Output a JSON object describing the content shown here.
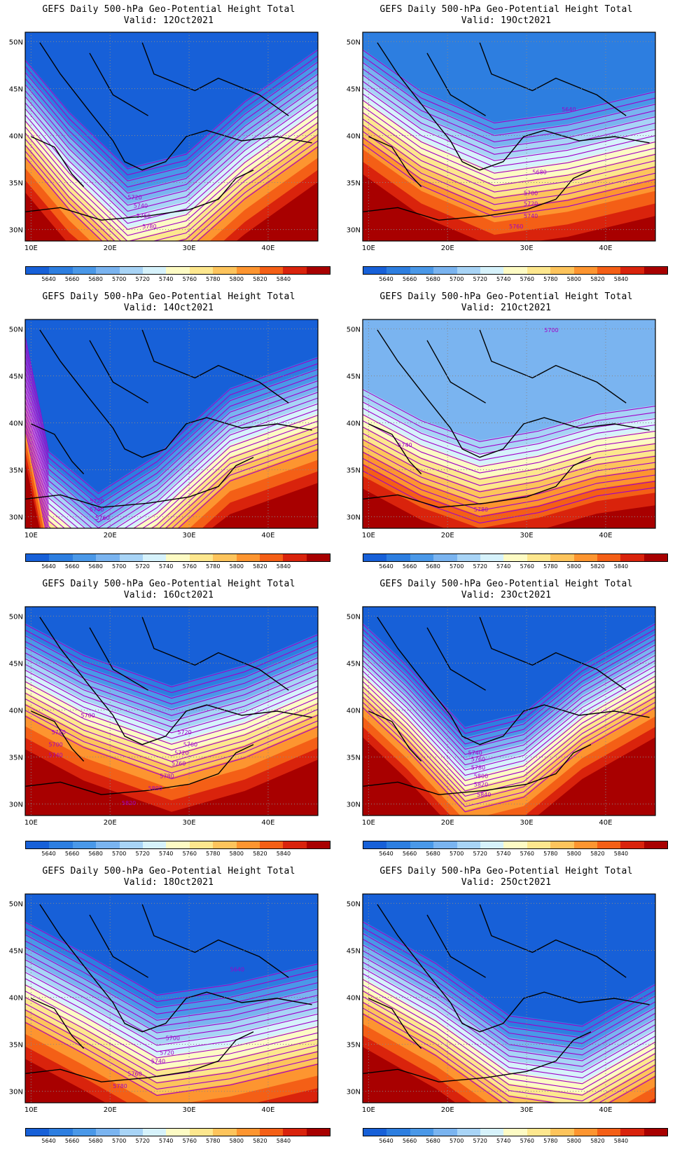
{
  "colorbar": {
    "colors": [
      "#1760d8",
      "#2d7ee0",
      "#4a98e8",
      "#7ab4f0",
      "#a8d4f6",
      "#d6f2fb",
      "#fdfbc4",
      "#fde78e",
      "#fdc45c",
      "#fd9530",
      "#f45f16",
      "#d9230c",
      "#a80000"
    ],
    "labels": [
      "5640",
      "5660",
      "5680",
      "5700",
      "5720",
      "5740",
      "5760",
      "5780",
      "5800",
      "5820",
      "5840"
    ]
  },
  "axes": {
    "lat_ticks": [
      "50N",
      "45N",
      "40N",
      "35N",
      "30N"
    ],
    "lon_ticks": [
      "10E",
      "20E",
      "30E",
      "40E"
    ]
  },
  "panels": [
    {
      "title": "GEFS Daily 500-hPa Geo-Potential Height Total",
      "valid": "Valid: 12Oct2021",
      "contour_labels": [
        "5720",
        "5740",
        "5760",
        "5780"
      ]
    },
    {
      "title": "GEFS Daily 500-hPa Geo-Potential Height Total",
      "valid": "Valid: 19Oct2021",
      "contour_labels": [
        "5640",
        "5680",
        "5700",
        "5720",
        "5740",
        "5760"
      ]
    },
    {
      "title": "GEFS Daily 500-hPa Geo-Potential Height Total",
      "valid": "Valid: 14Oct2021",
      "contour_labels": [
        "5720",
        "5740",
        "5760"
      ]
    },
    {
      "title": "GEFS Daily 500-hPa Geo-Potential Height Total",
      "valid": "Valid: 21Oct2021",
      "contour_labels": [
        "5700",
        "5740",
        "5780"
      ]
    },
    {
      "title": "GEFS Daily 500-hPa Geo-Potential Height Total",
      "valid": "Valid: 16Oct2021",
      "contour_labels": [
        "5700",
        "5720",
        "5740",
        "5760",
        "5700",
        "5720",
        "5740",
        "5760",
        "5780",
        "5800",
        "5820"
      ]
    },
    {
      "title": "GEFS Daily 500-hPa Geo-Potential Height Total",
      "valid": "Valid: 23Oct2021",
      "contour_labels": [
        "5740",
        "5760",
        "5780",
        "5800",
        "5820",
        "5840"
      ]
    },
    {
      "title": "GEFS Daily 500-hPa Geo-Potential Height Total",
      "valid": "Valid: 18Oct2021",
      "contour_labels": [
        "5640",
        "5700",
        "5720",
        "5740",
        "5760",
        "5780"
      ]
    },
    {
      "title": "GEFS Daily 500-hPa Geo-Potential Height Total",
      "valid": "Valid: 25Oct2021",
      "contour_labels": []
    }
  ]
}
